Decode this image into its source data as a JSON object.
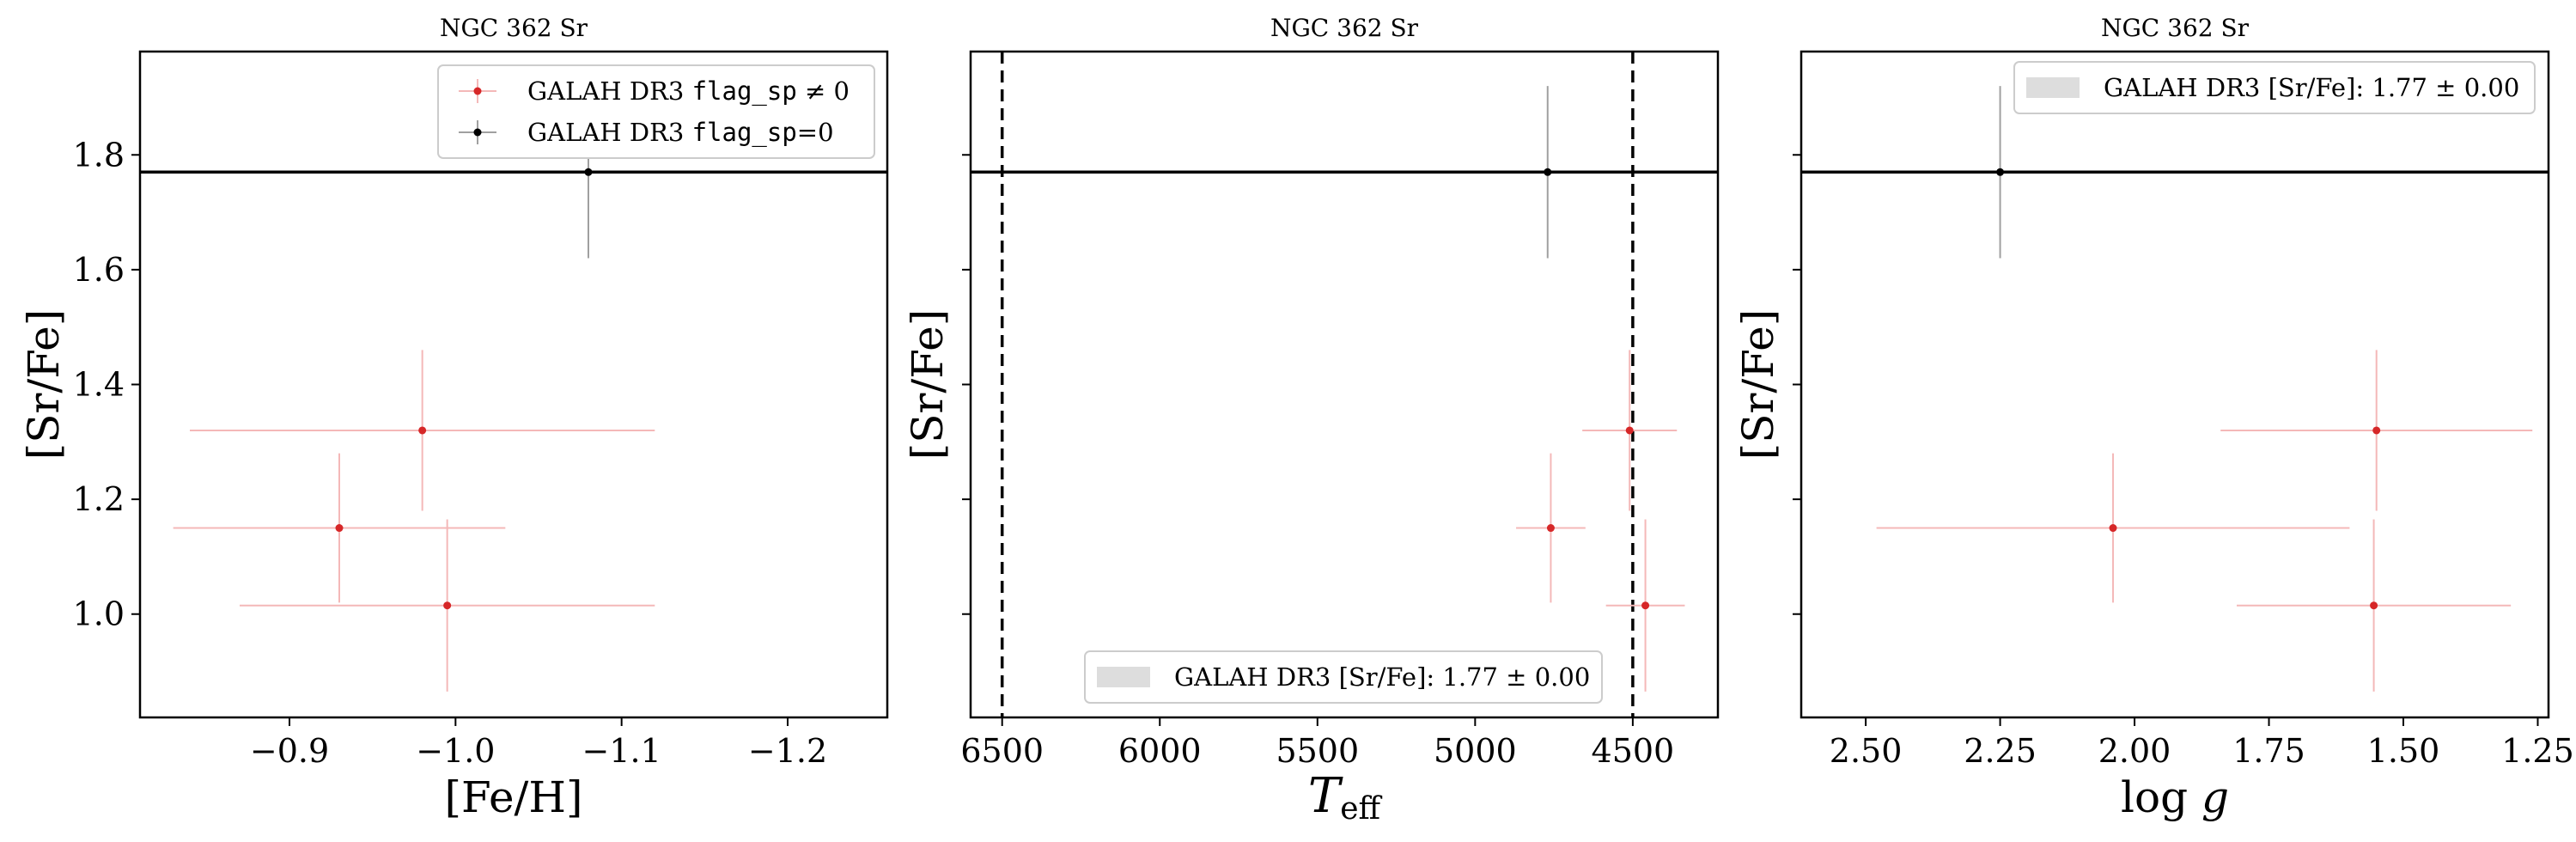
{
  "colors": {
    "flagged": "#d62728",
    "flagged_err": "#f4b8b8",
    "good": "#000000",
    "good_err": "#a0a0a0",
    "band": "#dddddd",
    "ref_line": "#000000"
  },
  "chart_data": [
    {
      "type": "scatter",
      "title": "NGC 362 Sr",
      "xlabel": "[Fe/H]",
      "ylabel": "[Sr/Fe]",
      "xlim": [
        -0.81,
        -1.26
      ],
      "ylim": [
        0.82,
        1.98
      ],
      "x_ticks": [
        -0.9,
        -1.0,
        -1.1,
        -1.2
      ],
      "x_tick_labels": [
        "−0.9",
        "−1.0",
        "−1.1",
        "−1.2"
      ],
      "y_ticks": [
        1.0,
        1.2,
        1.4,
        1.6,
        1.8
      ],
      "y_tick_labels": [
        "1.0",
        "1.2",
        "1.4",
        "1.6",
        "1.8"
      ],
      "hline": 1.77,
      "legend": {
        "placement": "top-right",
        "entries": [
          {
            "prefix": "GALAH DR3 ",
            "code": "flag_sp",
            "suffix": " ≠ 0"
          },
          {
            "prefix": "GALAH DR3 ",
            "code": "flag_sp",
            "suffix": "=0"
          }
        ]
      },
      "series": [
        {
          "flag": "nonzero",
          "points": [
            {
              "x": -0.98,
              "y": 1.32,
              "xerr": 0.14,
              "yerr": 0.14
            },
            {
              "x": -0.93,
              "y": 1.15,
              "xerr": 0.1,
              "yerr": 0.13
            },
            {
              "x": -0.995,
              "y": 1.015,
              "xerr": 0.125,
              "yerr": 0.15
            }
          ]
        },
        {
          "flag": "zero",
          "points": [
            {
              "x": -1.08,
              "y": 1.77,
              "xerr": 0.0,
              "yerr": 0.15
            }
          ]
        }
      ]
    },
    {
      "type": "scatter",
      "title": "NGC 362 Sr",
      "xlabel": "T",
      "xlabel_sub": "eff",
      "ylabel": "[Sr/Fe]",
      "xlim": [
        6600,
        4230
      ],
      "ylim": [
        0.82,
        1.98
      ],
      "x_ticks": [
        6500,
        6000,
        5500,
        5000,
        4500
      ],
      "x_tick_labels": [
        "6500",
        "6000",
        "5500",
        "5000",
        "4500"
      ],
      "y_ticks": [
        1.0,
        1.2,
        1.4,
        1.6,
        1.8
      ],
      "hline": 1.77,
      "vlines": [
        6500,
        4500
      ],
      "legend": {
        "placement": "lower center",
        "entries": [
          {
            "prefix": "GALAH DR3 [Sr/Fe]: ",
            "math": "1.77 ± 0.00"
          }
        ]
      },
      "series": [
        {
          "flag": "nonzero",
          "points": [
            {
              "x": 4510,
              "y": 1.32,
              "xerr": 150,
              "yerr": 0.14
            },
            {
              "x": 4760,
              "y": 1.15,
              "xerr": 110,
              "yerr": 0.13
            },
            {
              "x": 4460,
              "y": 1.015,
              "xerr": 125,
              "yerr": 0.15
            }
          ]
        },
        {
          "flag": "zero",
          "points": [
            {
              "x": 4770,
              "y": 1.77,
              "xerr": 0,
              "yerr": 0.15
            }
          ]
        }
      ]
    },
    {
      "type": "scatter",
      "title": "NGC 362 Sr",
      "xlabel": "log g",
      "ylabel": "[Sr/Fe]",
      "xlim": [
        2.62,
        1.23
      ],
      "ylim": [
        0.82,
        1.98
      ],
      "x_ticks": [
        2.5,
        2.25,
        2.0,
        1.75,
        1.5,
        1.25
      ],
      "x_tick_labels": [
        "2.50",
        "2.25",
        "2.00",
        "1.75",
        "1.50",
        "1.25"
      ],
      "y_ticks": [
        1.0,
        1.2,
        1.4,
        1.6,
        1.8
      ],
      "hline": 1.77,
      "legend": {
        "placement": "top-right",
        "entries": [
          {
            "prefix": "GALAH DR3 [Sr/Fe]: ",
            "math": "1.77 ± 0.00"
          }
        ]
      },
      "series": [
        {
          "flag": "nonzero",
          "points": [
            {
              "x": 1.55,
              "y": 1.32,
              "xerr": 0.29,
              "yerr": 0.14
            },
            {
              "x": 2.04,
              "y": 1.15,
              "xerr": 0.44,
              "yerr": 0.13
            },
            {
              "x": 1.555,
              "y": 1.015,
              "xerr": 0.255,
              "yerr": 0.15
            }
          ]
        },
        {
          "flag": "zero",
          "points": [
            {
              "x": 2.25,
              "y": 1.77,
              "xerr": 0,
              "yerr": 0.15
            }
          ]
        }
      ]
    }
  ]
}
